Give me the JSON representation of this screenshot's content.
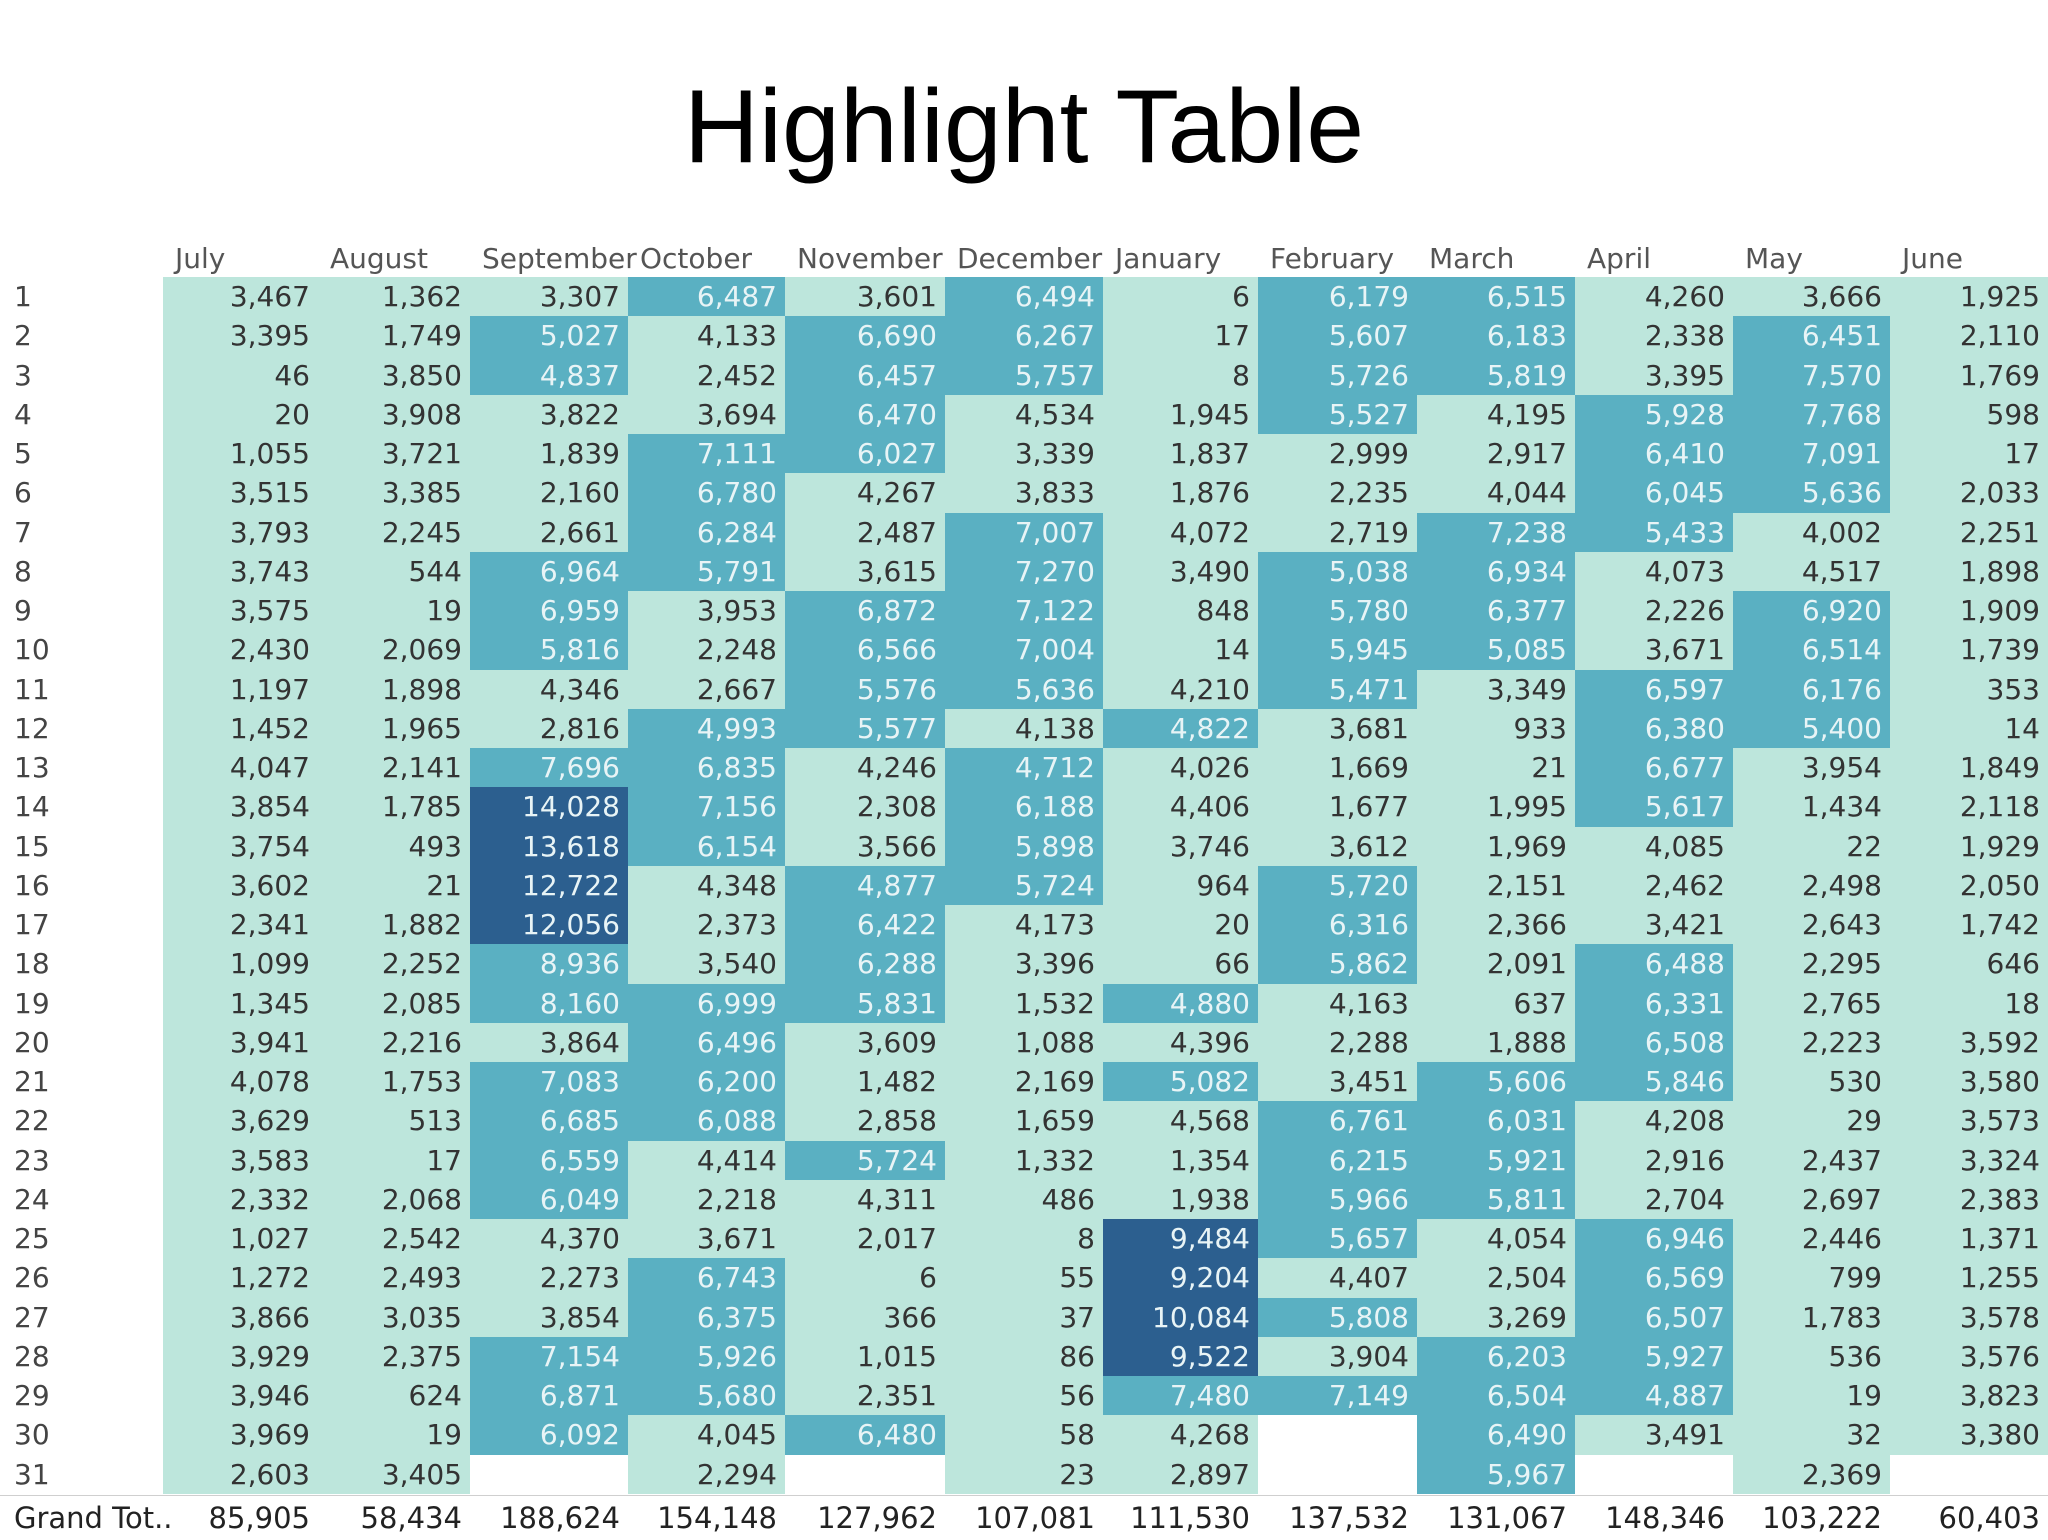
{
  "title": "Highlight Table",
  "colors": {
    "level1": "#bde6dc",
    "level2": "#5ab0c2",
    "level3": "#2c5f8f",
    "text_light": "#e8f4f6",
    "text_dark": "#333333"
  },
  "chart_data": {
    "type": "heatmap",
    "columns": [
      "July",
      "August",
      "September",
      "October",
      "November",
      "December",
      "January",
      "February",
      "March",
      "April",
      "May",
      "June"
    ],
    "rows": [
      "1",
      "2",
      "3",
      "4",
      "5",
      "6",
      "7",
      "8",
      "9",
      "10",
      "11",
      "12",
      "13",
      "14",
      "15",
      "16",
      "17",
      "18",
      "19",
      "20",
      "21",
      "22",
      "23",
      "24",
      "25",
      "26",
      "27",
      "28",
      "29",
      "30",
      "31"
    ],
    "values": [
      [
        "3,467",
        "1,362",
        "3,307",
        "6,487",
        "3,601",
        "6,494",
        "6",
        "6,179",
        "6,515",
        "4,260",
        "3,666",
        "1,925"
      ],
      [
        "3,395",
        "1,749",
        "5,027",
        "4,133",
        "6,690",
        "6,267",
        "17",
        "5,607",
        "6,183",
        "2,338",
        "6,451",
        "2,110"
      ],
      [
        "46",
        "3,850",
        "4,837",
        "2,452",
        "6,457",
        "5,757",
        "8",
        "5,726",
        "5,819",
        "3,395",
        "7,570",
        "1,769"
      ],
      [
        "20",
        "3,908",
        "3,822",
        "3,694",
        "6,470",
        "4,534",
        "1,945",
        "5,527",
        "4,195",
        "5,928",
        "7,768",
        "598"
      ],
      [
        "1,055",
        "3,721",
        "1,839",
        "7,111",
        "6,027",
        "3,339",
        "1,837",
        "2,999",
        "2,917",
        "6,410",
        "7,091",
        "17"
      ],
      [
        "3,515",
        "3,385",
        "2,160",
        "6,780",
        "4,267",
        "3,833",
        "1,876",
        "2,235",
        "4,044",
        "6,045",
        "5,636",
        "2,033"
      ],
      [
        "3,793",
        "2,245",
        "2,661",
        "6,284",
        "2,487",
        "7,007",
        "4,072",
        "2,719",
        "7,238",
        "5,433",
        "4,002",
        "2,251"
      ],
      [
        "3,743",
        "544",
        "6,964",
        "5,791",
        "3,615",
        "7,270",
        "3,490",
        "5,038",
        "6,934",
        "4,073",
        "4,517",
        "1,898"
      ],
      [
        "3,575",
        "19",
        "6,959",
        "3,953",
        "6,872",
        "7,122",
        "848",
        "5,780",
        "6,377",
        "2,226",
        "6,920",
        "1,909"
      ],
      [
        "2,430",
        "2,069",
        "5,816",
        "2,248",
        "6,566",
        "7,004",
        "14",
        "5,945",
        "5,085",
        "3,671",
        "6,514",
        "1,739"
      ],
      [
        "1,197",
        "1,898",
        "4,346",
        "2,667",
        "5,576",
        "5,636",
        "4,210",
        "5,471",
        "3,349",
        "6,597",
        "6,176",
        "353"
      ],
      [
        "1,452",
        "1,965",
        "2,816",
        "4,993",
        "5,577",
        "4,138",
        "4,822",
        "3,681",
        "933",
        "6,380",
        "5,400",
        "14"
      ],
      [
        "4,047",
        "2,141",
        "7,696",
        "6,835",
        "4,246",
        "4,712",
        "4,026",
        "1,669",
        "21",
        "6,677",
        "3,954",
        "1,849"
      ],
      [
        "3,854",
        "1,785",
        "14,028",
        "7,156",
        "2,308",
        "6,188",
        "4,406",
        "1,677",
        "1,995",
        "5,617",
        "1,434",
        "2,118"
      ],
      [
        "3,754",
        "493",
        "13,618",
        "6,154",
        "3,566",
        "5,898",
        "3,746",
        "3,612",
        "1,969",
        "4,085",
        "22",
        "1,929"
      ],
      [
        "3,602",
        "21",
        "12,722",
        "4,348",
        "4,877",
        "5,724",
        "964",
        "5,720",
        "2,151",
        "2,462",
        "2,498",
        "2,050"
      ],
      [
        "2,341",
        "1,882",
        "12,056",
        "2,373",
        "6,422",
        "4,173",
        "20",
        "6,316",
        "2,366",
        "3,421",
        "2,643",
        "1,742"
      ],
      [
        "1,099",
        "2,252",
        "8,936",
        "3,540",
        "6,288",
        "3,396",
        "66",
        "5,862",
        "2,091",
        "6,488",
        "2,295",
        "646"
      ],
      [
        "1,345",
        "2,085",
        "8,160",
        "6,999",
        "5,831",
        "1,532",
        "4,880",
        "4,163",
        "637",
        "6,331",
        "2,765",
        "18"
      ],
      [
        "3,941",
        "2,216",
        "3,864",
        "6,496",
        "3,609",
        "1,088",
        "4,396",
        "2,288",
        "1,888",
        "6,508",
        "2,223",
        "3,592"
      ],
      [
        "4,078",
        "1,753",
        "7,083",
        "6,200",
        "1,482",
        "2,169",
        "5,082",
        "3,451",
        "5,606",
        "5,846",
        "530",
        "3,580"
      ],
      [
        "3,629",
        "513",
        "6,685",
        "6,088",
        "2,858",
        "1,659",
        "4,568",
        "6,761",
        "6,031",
        "4,208",
        "29",
        "3,573"
      ],
      [
        "3,583",
        "17",
        "6,559",
        "4,414",
        "5,724",
        "1,332",
        "1,354",
        "6,215",
        "5,921",
        "2,916",
        "2,437",
        "3,324"
      ],
      [
        "2,332",
        "2,068",
        "6,049",
        "2,218",
        "4,311",
        "486",
        "1,938",
        "5,966",
        "5,811",
        "2,704",
        "2,697",
        "2,383"
      ],
      [
        "1,027",
        "2,542",
        "4,370",
        "3,671",
        "2,017",
        "8",
        "9,484",
        "5,657",
        "4,054",
        "6,946",
        "2,446",
        "1,371"
      ],
      [
        "1,272",
        "2,493",
        "2,273",
        "6,743",
        "6",
        "55",
        "9,204",
        "4,407",
        "2,504",
        "6,569",
        "799",
        "1,255"
      ],
      [
        "3,866",
        "3,035",
        "3,854",
        "6,375",
        "366",
        "37",
        "10,084",
        "5,808",
        "3,269",
        "6,507",
        "1,783",
        "3,578"
      ],
      [
        "3,929",
        "2,375",
        "7,154",
        "5,926",
        "1,015",
        "86",
        "9,522",
        "3,904",
        "6,203",
        "5,927",
        "536",
        "3,576"
      ],
      [
        "3,946",
        "624",
        "6,871",
        "5,680",
        "2,351",
        "56",
        "7,480",
        "7,149",
        "6,504",
        "4,887",
        "19",
        "3,823"
      ],
      [
        "3,969",
        "19",
        "6,092",
        "4,045",
        "6,480",
        "58",
        "4,268",
        "",
        "6,490",
        "3,491",
        "32",
        "3,380"
      ],
      [
        "2,603",
        "3,405",
        "",
        "2,294",
        "",
        "23",
        "2,897",
        "",
        "5,967",
        "",
        "2,369",
        ""
      ]
    ],
    "grand_total_label": "Grand Tot..",
    "grand_totals": [
      "85,905",
      "58,434",
      "188,624",
      "154,148",
      "127,962",
      "107,081",
      "111,530",
      "137,532",
      "131,067",
      "148,346",
      "103,222",
      "60,403"
    ]
  }
}
